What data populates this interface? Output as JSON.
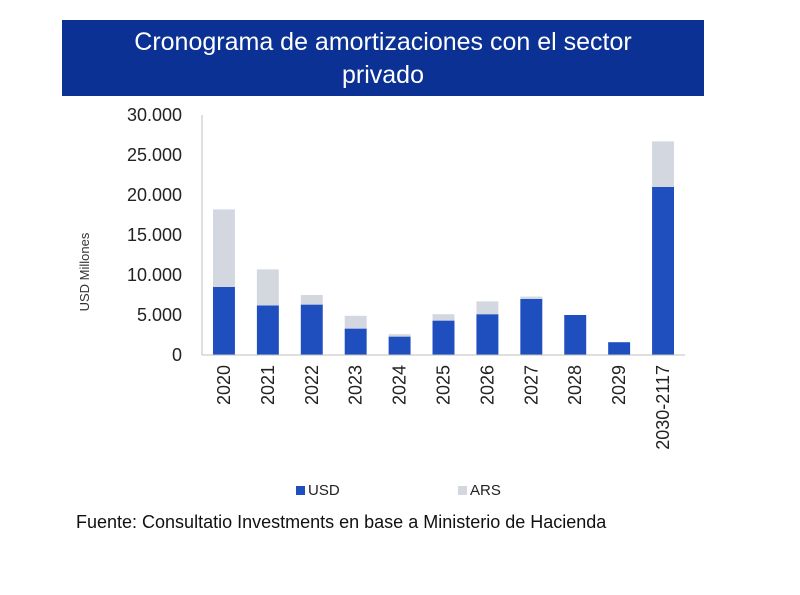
{
  "title_line1": "Cronograma de amortizaciones con el sector",
  "title_line2": "privado",
  "source": "Fuente: Consultatio Investments en base a Ministerio de Hacienda",
  "colors": {
    "title_bg": "#0a3193",
    "usd": "#1f4fbf",
    "ars": "#d3d7df"
  },
  "chart_data": {
    "type": "bar",
    "stacked": true,
    "ylabel": "USD Millones",
    "ylim": [
      0,
      30000
    ],
    "yticks": [
      "30.000",
      "25.000",
      "20.000",
      "15.000",
      "10.000",
      "5.000",
      "0"
    ],
    "ytick_values": [
      30000,
      25000,
      20000,
      15000,
      10000,
      5000,
      0
    ],
    "categories": [
      "2020",
      "2021",
      "2022",
      "2023",
      "2024",
      "2025",
      "2026",
      "2027",
      "2028",
      "2029",
      "2030-2117"
    ],
    "series": [
      {
        "name": "USD",
        "values": [
          8500,
          6200,
          6300,
          3300,
          2300,
          4300,
          5100,
          7000,
          5000,
          1600,
          21000
        ]
      },
      {
        "name": "ARS",
        "values": [
          9700,
          4500,
          1200,
          1600,
          300,
          800,
          1600,
          300,
          0,
          0,
          5700
        ]
      }
    ],
    "legend": "bottom"
  }
}
